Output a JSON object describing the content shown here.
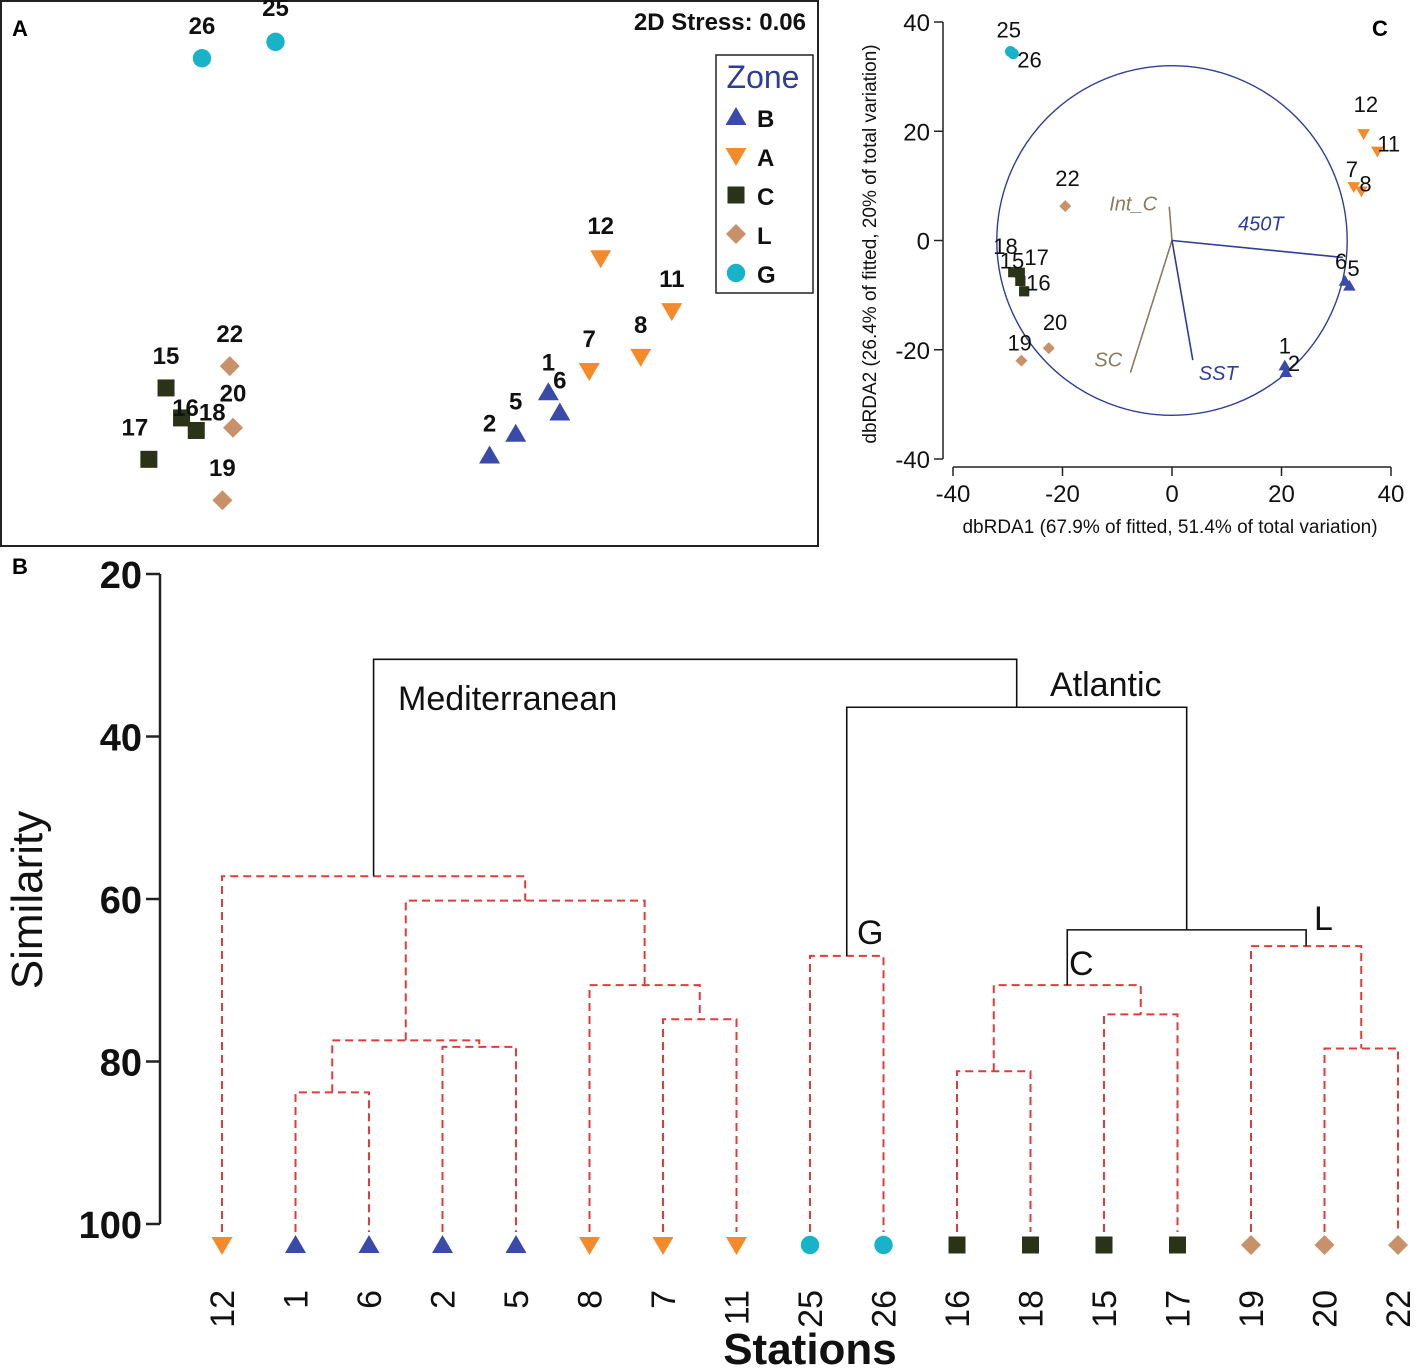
{
  "colors": {
    "B": "#3a4aa8",
    "A": "#f58a2a",
    "C": "#2a3317",
    "L": "#c9916a",
    "G": "#18b3c8",
    "dendro_dashed": "#e23b3b",
    "legend_title": "#2e3d9a",
    "vector_blue": "#2e3d9a",
    "vector_brown": "#8a7a5e"
  },
  "chart_data": [
    {
      "panel": "A",
      "type": "scatter",
      "title": "2D Stress: 0.06",
      "xlabel": "",
      "ylabel": "",
      "legend": {
        "title": "Zone",
        "placement": "top-right",
        "entries": [
          {
            "key": "B",
            "label": "B",
            "icon": "triangle-up-icon"
          },
          {
            "key": "A",
            "label": "A",
            "icon": "triangle-down-icon"
          },
          {
            "key": "C",
            "label": "C",
            "icon": "square-icon"
          },
          {
            "key": "L",
            "label": "L",
            "icon": "diamond-icon"
          },
          {
            "key": "G",
            "label": "G",
            "icon": "circle-icon"
          }
        ]
      },
      "xlim": [
        0,
        100
      ],
      "ylim": [
        0,
        100
      ],
      "points": [
        {
          "label": "26",
          "zone": "G",
          "x": 24.6,
          "y": 89.5
        },
        {
          "label": "25",
          "zone": "G",
          "x": 33.6,
          "y": 92.5
        },
        {
          "label": "12",
          "zone": "A",
          "x": 73.4,
          "y": 52.8
        },
        {
          "label": "11",
          "zone": "A",
          "x": 82.1,
          "y": 43.1
        },
        {
          "label": "8",
          "zone": "A",
          "x": 78.3,
          "y": 34.7
        },
        {
          "label": "7",
          "zone": "A",
          "x": 72.0,
          "y": 32.1
        },
        {
          "label": "1",
          "zone": "B",
          "x": 67.0,
          "y": 28.2
        },
        {
          "label": "6",
          "zone": "B",
          "x": 68.4,
          "y": 24.5
        },
        {
          "label": "5",
          "zone": "B",
          "x": 63.0,
          "y": 20.6
        },
        {
          "label": "2",
          "zone": "B",
          "x": 59.8,
          "y": 16.6
        },
        {
          "label": "15",
          "zone": "C",
          "x": 20.2,
          "y": 29.0
        },
        {
          "label": "16",
          "zone": "C",
          "x": 22.1,
          "y": 23.5
        },
        {
          "label": "18",
          "zone": "C",
          "x": 23.9,
          "y": 21.2
        },
        {
          "label": "17",
          "zone": "C",
          "x": 18.1,
          "y": 15.9
        },
        {
          "label": "22",
          "zone": "L",
          "x": 28.0,
          "y": 33.0
        },
        {
          "label": "20",
          "zone": "L",
          "x": 28.4,
          "y": 21.7
        },
        {
          "label": "19",
          "zone": "L",
          "x": 27.1,
          "y": 8.4
        }
      ]
    },
    {
      "panel": "B",
      "type": "dendrogram",
      "xlabel": "Stations",
      "ylabel": "Similarity",
      "ylim": [
        20,
        100
      ],
      "yticks": [
        20,
        40,
        60,
        80,
        100
      ],
      "leaves": [
        {
          "label": "12",
          "zone": "A"
        },
        {
          "label": "1",
          "zone": "B"
        },
        {
          "label": "6",
          "zone": "B"
        },
        {
          "label": "2",
          "zone": "B"
        },
        {
          "label": "5",
          "zone": "B"
        },
        {
          "label": "8",
          "zone": "A"
        },
        {
          "label": "7",
          "zone": "A"
        },
        {
          "label": "11",
          "zone": "A"
        },
        {
          "label": "25",
          "zone": "G"
        },
        {
          "label": "26",
          "zone": "G"
        },
        {
          "label": "16",
          "zone": "C"
        },
        {
          "label": "18",
          "zone": "C"
        },
        {
          "label": "15",
          "zone": "C"
        },
        {
          "label": "17",
          "zone": "C"
        },
        {
          "label": "19",
          "zone": "L"
        },
        {
          "label": "20",
          "zone": "L"
        },
        {
          "label": "22",
          "zone": "L"
        }
      ],
      "merges": [
        {
          "a": 1,
          "b": 2,
          "sim": 83.8,
          "style": "dashed"
        },
        {
          "a": 3,
          "b": 4,
          "sim": 78.2,
          "style": "dashed"
        },
        {
          "a": 17,
          "b": 18,
          "sim": 77.4,
          "style": "dashed"
        },
        {
          "a": 6,
          "b": 7,
          "sim": 74.8,
          "style": "dashed"
        },
        {
          "a": 5,
          "b": 20,
          "sim": 70.6,
          "style": "dashed"
        },
        {
          "a": 19,
          "b": 21,
          "sim": 60.2,
          "style": "dashed"
        },
        {
          "a": 0,
          "b": 22,
          "sim": 57.2,
          "style": "dashed"
        },
        {
          "a": 8,
          "b": 9,
          "sim": 67.0,
          "style": "dashed"
        },
        {
          "a": 10,
          "b": 11,
          "sim": 81.2,
          "style": "dashed"
        },
        {
          "a": 12,
          "b": 13,
          "sim": 74.2,
          "style": "dashed"
        },
        {
          "a": 25,
          "b": 26,
          "sim": 70.6,
          "style": "dashed"
        },
        {
          "a": 15,
          "b": 16,
          "sim": 78.4,
          "style": "dashed"
        },
        {
          "a": 14,
          "b": 28,
          "sim": 65.8,
          "style": "dashed"
        },
        {
          "a": 27,
          "b": 29,
          "sim": 63.8,
          "style": "solid"
        },
        {
          "a": 24,
          "b": 30,
          "sim": 36.4,
          "style": "solid"
        },
        {
          "a": 23,
          "b": 31,
          "sim": 30.5,
          "style": "solid"
        }
      ],
      "group_labels": [
        "Mediterranean",
        "Atlantic",
        "G",
        "C",
        "L"
      ]
    },
    {
      "panel": "C",
      "type": "scatter",
      "subtype": "dbRDA",
      "xlabel": "dbRDA1 (67.9% of fitted, 51.4% of total variation)",
      "ylabel": "dbRDA2 (26.4% of fitted, 20% of total variation)",
      "xlim": [
        -40,
        40
      ],
      "ylim": [
        -40,
        40
      ],
      "xticks": [
        -40,
        -20,
        0,
        20,
        40
      ],
      "yticks": [
        -40,
        -20,
        0,
        20,
        40
      ],
      "circle_radius": 32,
      "points": [
        {
          "label": "25",
          "zone": "G",
          "x": -29.5,
          "y": 34.6
        },
        {
          "label": "26",
          "zone": "G",
          "x": -29.0,
          "y": 34.2
        },
        {
          "label": "12",
          "zone": "A",
          "x": 35.0,
          "y": 19.5
        },
        {
          "label": "11",
          "zone": "A",
          "x": 37.5,
          "y": 16.3
        },
        {
          "label": "7",
          "zone": "A",
          "x": 33.2,
          "y": 9.8
        },
        {
          "label": "8",
          "zone": "A",
          "x": 34.6,
          "y": 9.0
        },
        {
          "label": "22",
          "zone": "L",
          "x": -19.5,
          "y": 6.3
        },
        {
          "label": "18",
          "zone": "C",
          "x": -29.0,
          "y": -5.8
        },
        {
          "label": "15",
          "zone": "C",
          "x": -27.8,
          "y": -5.9
        },
        {
          "label": "17",
          "zone": "C",
          "x": -27.7,
          "y": -7.4
        },
        {
          "label": "16",
          "zone": "C",
          "x": -27.0,
          "y": -9.3
        },
        {
          "label": "6",
          "zone": "B",
          "x": 31.6,
          "y": -7.4
        },
        {
          "label": "5",
          "zone": "B",
          "x": 32.4,
          "y": -8.3
        },
        {
          "label": "20",
          "zone": "L",
          "x": -22.5,
          "y": -19.7
        },
        {
          "label": "19",
          "zone": "L",
          "x": -27.5,
          "y": -22.0
        },
        {
          "label": "1",
          "zone": "B",
          "x": 20.6,
          "y": -22.9
        },
        {
          "label": "2",
          "zone": "B",
          "x": 20.8,
          "y": -24.1
        }
      ],
      "vectors": [
        {
          "label": "Int_C",
          "x": -0.5,
          "y": 6.2,
          "color_key": "vector_brown"
        },
        {
          "label": "450T",
          "x": 31.2,
          "y": -3.1,
          "color_key": "vector_blue"
        },
        {
          "label": "SC",
          "x": -7.6,
          "y": -24.2,
          "color_key": "vector_brown"
        },
        {
          "label": "SST",
          "x": 3.8,
          "y": -21.9,
          "color_key": "vector_blue"
        }
      ]
    }
  ],
  "panels": {
    "a_label": "A",
    "b_label": "B",
    "c_label": "C"
  }
}
